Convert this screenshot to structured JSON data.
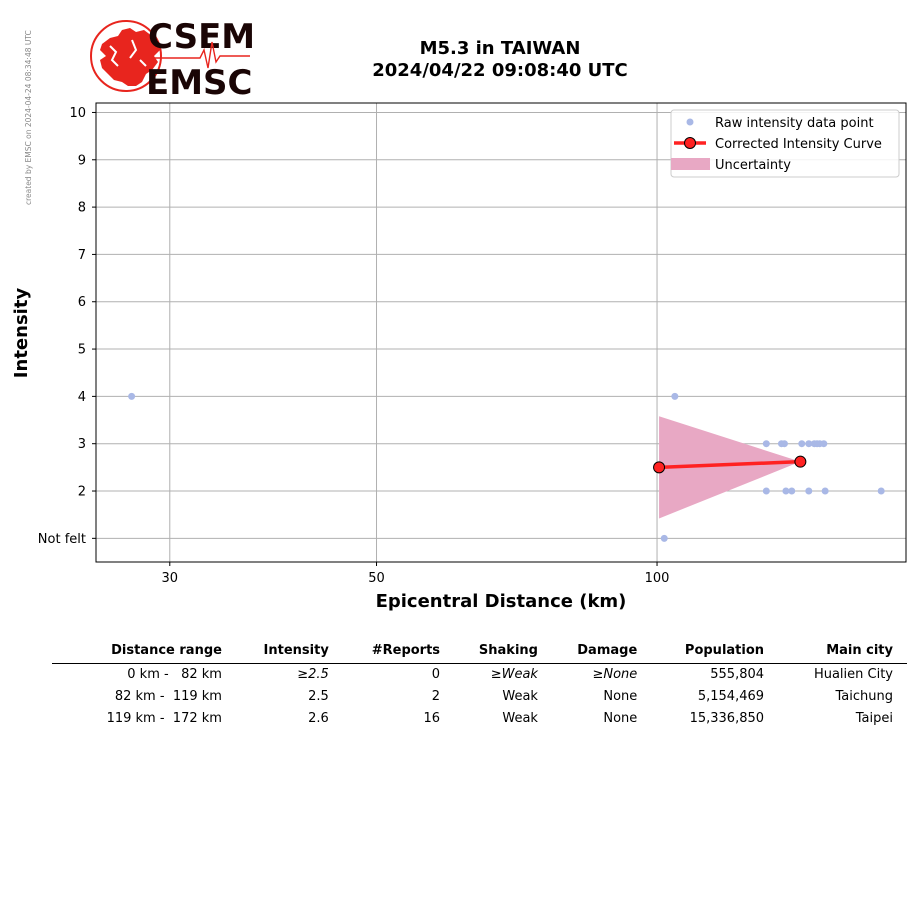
{
  "credit": "created by EMSC on 2024-04-24 08:34:48 UTC",
  "logo": {
    "top_text": "CSEM",
    "bottom_text": "EMSC",
    "red": "#e8251e",
    "dark": "#1a0505"
  },
  "header": {
    "title_line1": "M5.3 in TAIWAN",
    "title_line2": "2024/04/22 09:08:40 UTC"
  },
  "chart_data": {
    "type": "scatter",
    "xlabel": "Epicentral Distance (km)",
    "ylabel": "Intensity",
    "x_scale": "log",
    "xlim": [
      25,
      185
    ],
    "ylim": [
      0.5,
      10.2
    ],
    "x_ticks": [
      30,
      50,
      100
    ],
    "y_ticks": [
      {
        "value": 1,
        "label": "Not felt"
      },
      {
        "value": 2,
        "label": "2"
      },
      {
        "value": 3,
        "label": "3"
      },
      {
        "value": 4,
        "label": "4"
      },
      {
        "value": 5,
        "label": "5"
      },
      {
        "value": 6,
        "label": "6"
      },
      {
        "value": 7,
        "label": "7"
      },
      {
        "value": 8,
        "label": "8"
      },
      {
        "value": 9,
        "label": "9"
      },
      {
        "value": 10,
        "label": "10"
      }
    ],
    "grid": true,
    "legend_position": "top-right",
    "raw_points": {
      "name": "Raw intensity data point",
      "color": "#a9b8e6",
      "points": [
        [
          27.3,
          4
        ],
        [
          104.5,
          4
        ],
        [
          101.8,
          1
        ],
        [
          131,
          3
        ],
        [
          136,
          3
        ],
        [
          137,
          3
        ],
        [
          143,
          3
        ],
        [
          145.5,
          3
        ],
        [
          147.5,
          3
        ],
        [
          148.5,
          3
        ],
        [
          149.5,
          3
        ],
        [
          151,
          3
        ],
        [
          131,
          2
        ],
        [
          137.5,
          2
        ],
        [
          139.5,
          2
        ],
        [
          145.5,
          2
        ],
        [
          151.5,
          2
        ],
        [
          174,
          2
        ]
      ]
    },
    "corrected_curve": {
      "name": "Corrected Intensity Curve",
      "color": "#ff2222",
      "points": [
        [
          100.5,
          2.5
        ],
        [
          142.5,
          2.62
        ]
      ]
    },
    "uncertainty": {
      "name": "Uncertainty",
      "color": "#e8a8c4",
      "polygon": [
        [
          100.5,
          3.58
        ],
        [
          142.5,
          2.62
        ],
        [
          100.5,
          1.42
        ]
      ]
    }
  },
  "table": {
    "headers": [
      "Distance range",
      "Intensity",
      "#Reports",
      "Shaking",
      "Damage",
      "Population",
      "Main city"
    ],
    "rows": [
      {
        "range": "0 km -   82 km",
        "intensity": "≥2.5",
        "reports": "0",
        "shaking": "≥Weak",
        "damage": "≥None",
        "population": "555,804",
        "city": "Hualien City"
      },
      {
        "range": "82 km -  119 km",
        "intensity": "2.5",
        "reports": "2",
        "shaking": "Weak",
        "damage": "None",
        "population": "5,154,469",
        "city": "Taichung"
      },
      {
        "range": "119 km -  172 km",
        "intensity": "2.6",
        "reports": "16",
        "shaking": "Weak",
        "damage": "None",
        "population": "15,336,850",
        "city": "Taipei"
      }
    ]
  }
}
